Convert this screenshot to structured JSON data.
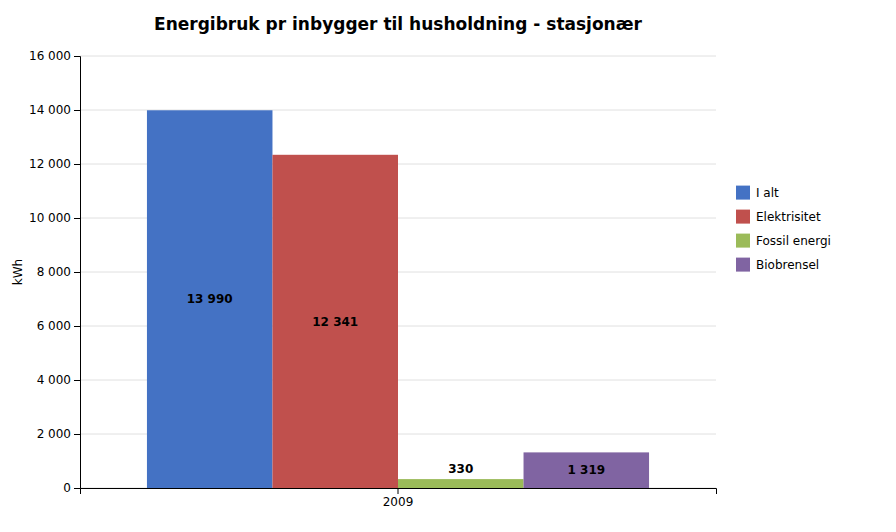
{
  "chart_data": {
    "type": "bar",
    "title": "Energibruk pr inbygger  til husholdning - stasjonær",
    "ylabel": "kWh",
    "categories": [
      "2009"
    ],
    "series": [
      {
        "name": "I alt",
        "color": "#4472C4",
        "values": [
          13990
        ],
        "value_labels": [
          "13 990"
        ]
      },
      {
        "name": "Elektrisitet",
        "color": "#C0504D",
        "values": [
          12341
        ],
        "value_labels": [
          "12 341"
        ]
      },
      {
        "name": "Fossil energi",
        "color": "#9BBB59",
        "values": [
          330
        ],
        "value_labels": [
          "330"
        ]
      },
      {
        "name": "Biobrensel",
        "color": "#8064A2",
        "values": [
          1319
        ],
        "value_labels": [
          "1 319"
        ]
      }
    ],
    "ylim": [
      0,
      16000
    ],
    "yticks": [
      0,
      {
        "value": 2000,
        "label": "2 000"
      },
      {
        "value": 4000,
        "label": "4 000"
      },
      {
        "value": 6000,
        "label": "6 000"
      },
      {
        "value": 8000,
        "label": "8 000"
      },
      {
        "value": 10000,
        "label": "10 000"
      },
      {
        "value": 12000,
        "label": "12 000"
      },
      {
        "value": 14000,
        "label": "14 000"
      },
      {
        "value": 16000,
        "label": "16 000"
      }
    ],
    "grid": true,
    "legend": "right",
    "data_labels": true
  }
}
